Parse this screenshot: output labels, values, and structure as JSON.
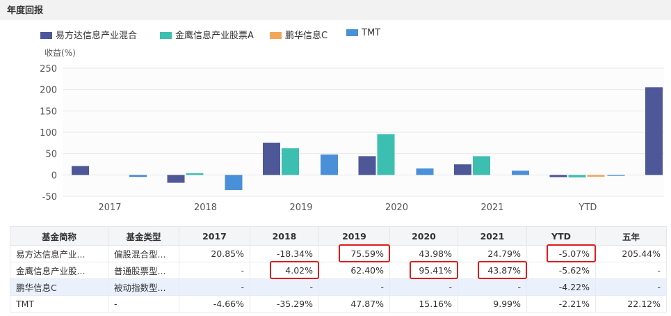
{
  "header": {
    "title": "年度回报"
  },
  "colors": {
    "series": [
      "#4e5798",
      "#3cbfb0",
      "#f2a65a",
      "#4a90d9"
    ],
    "highlight": "#e01b1b",
    "grid": "#e9e9e9",
    "axis_text": "#555555"
  },
  "chart_data": {
    "type": "bar",
    "title": "",
    "xlabel": "",
    "ylabel": "收益(%)",
    "categories": [
      "2017",
      "2018",
      "2019",
      "2020",
      "2021",
      "YTD"
    ],
    "ylim": [
      -50,
      250
    ],
    "yticks": [
      -50,
      0,
      50,
      100,
      150,
      200,
      250
    ],
    "grid": true,
    "legend_position": "top-left",
    "series": [
      {
        "name": "易方达信息产业混合",
        "values": [
          20.85,
          -18.34,
          75.59,
          43.98,
          24.79,
          -5.07
        ]
      },
      {
        "name": "金鹰信息产业股票A",
        "values": [
          null,
          4.02,
          62.4,
          95.41,
          43.87,
          -5.62
        ]
      },
      {
        "name": "鹏华信息C",
        "values": [
          null,
          null,
          null,
          null,
          null,
          -4.22
        ]
      },
      {
        "name": "TMT",
        "values": [
          -4.66,
          -35.29,
          47.87,
          15.16,
          9.99,
          -2.21
        ]
      }
    ],
    "extra_bar": {
      "category": "五年",
      "series": "易方达信息产业混合",
      "value": 205.44
    }
  },
  "table": {
    "columns": [
      "基金简称",
      "基金类型",
      "2017",
      "2018",
      "2019",
      "2020",
      "2021",
      "YTD",
      "五年"
    ],
    "rows": [
      [
        "易方达信息产业...",
        "偏股混合型...",
        "20.85%",
        "-18.34%",
        "75.59%",
        "43.98%",
        "24.79%",
        "-5.07%",
        "205.44%"
      ],
      [
        "金鹰信息产业股...",
        "普通股票型...",
        "-",
        "4.02%",
        "62.40%",
        "95.41%",
        "43.87%",
        "-5.62%",
        "-"
      ],
      [
        "鹏华信息C",
        "被动指数型...",
        "-",
        "-",
        "-",
        "-",
        "-",
        "-4.22%",
        "-"
      ],
      [
        "TMT",
        "-",
        "-4.66%",
        "-35.29%",
        "47.87%",
        "15.16%",
        "9.99%",
        "-2.21%",
        "22.12%"
      ]
    ],
    "selected_row": 2,
    "highlighted_cells": [
      [
        0,
        4
      ],
      [
        0,
        7
      ],
      [
        1,
        3
      ],
      [
        1,
        5
      ],
      [
        1,
        6
      ]
    ]
  }
}
